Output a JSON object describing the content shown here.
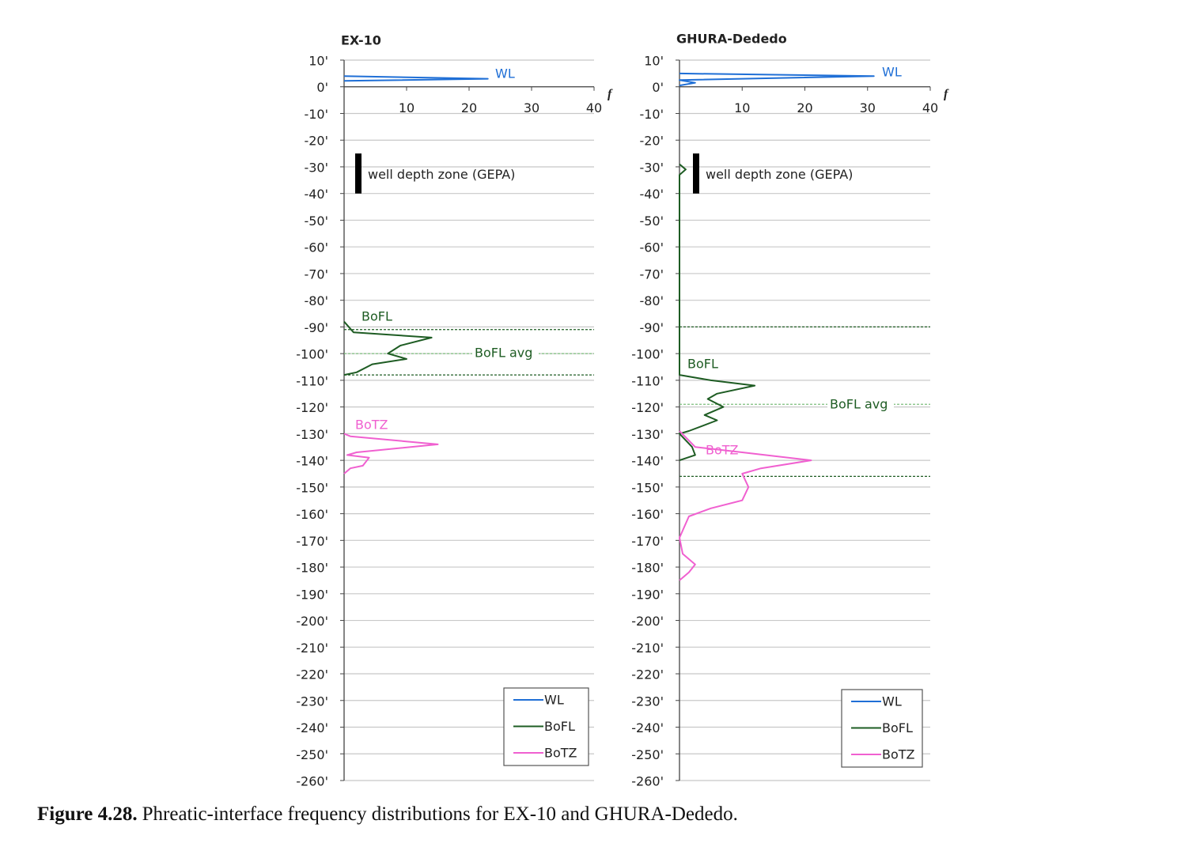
{
  "chart_data": [
    {
      "type": "line",
      "title": "EX-10",
      "x_label": "f",
      "xlim": [
        0,
        40
      ],
      "xticks": [
        10,
        20,
        30,
        40
      ],
      "ylim": [
        -260,
        10
      ],
      "yticks": [
        {
          "value": 10,
          "label": "10'"
        },
        {
          "value": 0,
          "label": "0'"
        },
        {
          "value": -10,
          "label": "-10'"
        },
        {
          "value": -20,
          "label": "-20'"
        },
        {
          "value": -30,
          "label": "-30'"
        },
        {
          "value": -40,
          "label": "-40'"
        },
        {
          "value": -50,
          "label": "-50'"
        },
        {
          "value": -60,
          "label": "-60'"
        },
        {
          "value": -70,
          "label": "-70'"
        },
        {
          "value": -80,
          "label": "-80'"
        },
        {
          "value": -90,
          "label": "-90'"
        },
        {
          "value": -100,
          "label": "-100'"
        },
        {
          "value": -110,
          "label": "-110'"
        },
        {
          "value": -120,
          "label": "-120'"
        },
        {
          "value": -130,
          "label": "-130'"
        },
        {
          "value": -140,
          "label": "-140'"
        },
        {
          "value": -150,
          "label": "-150'"
        },
        {
          "value": -160,
          "label": "-160'"
        },
        {
          "value": -170,
          "label": "-170'"
        },
        {
          "value": -180,
          "label": "-180'"
        },
        {
          "value": -190,
          "label": "-190'"
        },
        {
          "value": -200,
          "label": "-200'"
        },
        {
          "value": -210,
          "label": "-210'"
        },
        {
          "value": -220,
          "label": "-220'"
        },
        {
          "value": -230,
          "label": "-230'"
        },
        {
          "value": -240,
          "label": "-240'"
        },
        {
          "value": -250,
          "label": "-250'"
        },
        {
          "value": -260,
          "label": "-260'"
        }
      ],
      "grid": true,
      "series": [
        {
          "name": "WL",
          "color": "#1f6fd6",
          "x": [
            0,
            23,
            0
          ],
          "y": [
            4,
            3,
            2.2
          ]
        },
        {
          "name": "BoFL",
          "color": "#1e5c23",
          "x": [
            0,
            1.5,
            14,
            9,
            7,
            10,
            4.5,
            2,
            0
          ],
          "y": [
            -88,
            -92,
            -94,
            -97,
            -100,
            -102,
            -104,
            -107,
            -108
          ]
        },
        {
          "name": "BoTZ",
          "color": "#f060d0",
          "x": [
            0,
            1,
            15,
            2,
            0.5,
            4,
            3,
            1,
            0
          ],
          "y": [
            -130,
            -131,
            -134,
            -137,
            -138,
            -139,
            -142,
            -143,
            -145
          ]
        }
      ],
      "bofl_band": {
        "upper": -91,
        "avg": -100,
        "lower": -108,
        "avg_label": "BoFL avg"
      },
      "well_zone": {
        "label": "well depth zone (GEPA)",
        "top": -25,
        "bottom": -40
      }
    },
    {
      "type": "line",
      "title": "GHURA-Dededo",
      "x_label": "f",
      "xlim": [
        0,
        40
      ],
      "xticks": [
        10,
        20,
        30,
        40
      ],
      "ylim": [
        -260,
        10
      ],
      "yticks": [
        {
          "value": 10,
          "label": "10'"
        },
        {
          "value": 0,
          "label": "0'"
        },
        {
          "value": -10,
          "label": "-10'"
        },
        {
          "value": -20,
          "label": "-20'"
        },
        {
          "value": -30,
          "label": "-30'"
        },
        {
          "value": -40,
          "label": "-40'"
        },
        {
          "value": -50,
          "label": "-50'"
        },
        {
          "value": -60,
          "label": "-60'"
        },
        {
          "value": -70,
          "label": "-70'"
        },
        {
          "value": -80,
          "label": "-80'"
        },
        {
          "value": -90,
          "label": "-90'"
        },
        {
          "value": -100,
          "label": "-100'"
        },
        {
          "value": -110,
          "label": "-110'"
        },
        {
          "value": -120,
          "label": "-120'"
        },
        {
          "value": -130,
          "label": "-130'"
        },
        {
          "value": -140,
          "label": "-140'"
        },
        {
          "value": -150,
          "label": "-150'"
        },
        {
          "value": -160,
          "label": "-160'"
        },
        {
          "value": -170,
          "label": "-170'"
        },
        {
          "value": -180,
          "label": "-180'"
        },
        {
          "value": -190,
          "label": "-190'"
        },
        {
          "value": -200,
          "label": "-200'"
        },
        {
          "value": -210,
          "label": "-210'"
        },
        {
          "value": -220,
          "label": "-220'"
        },
        {
          "value": -230,
          "label": "-230'"
        },
        {
          "value": -240,
          "label": "-240'"
        },
        {
          "value": -250,
          "label": "-250'"
        },
        {
          "value": -260,
          "label": "-260'"
        }
      ],
      "grid": true,
      "series": [
        {
          "name": "WL",
          "color": "#1f6fd6",
          "x": [
            0,
            31,
            0,
            2.5,
            0
          ],
          "y": [
            5,
            4,
            2.5,
            1.5,
            0.5
          ]
        },
        {
          "name": "BoFL",
          "color": "#1e5c23",
          "x": [
            0,
            1,
            0,
            0,
            5,
            12,
            6,
            4.5,
            7,
            4,
            6,
            1.5,
            0,
            2,
            2.5,
            0
          ],
          "y": [
            -29,
            -31,
            -33,
            -108,
            -110,
            -112,
            -115,
            -117,
            -120,
            -123,
            -125,
            -129,
            -130,
            -135,
            -138,
            -140
          ]
        },
        {
          "name": "BoTZ",
          "color": "#f060d0",
          "x": [
            0,
            2.5,
            10,
            21,
            13,
            10,
            11,
            10,
            5,
            1.5,
            0,
            0.5,
            2.5,
            1.5,
            0
          ],
          "y": [
            -129,
            -135,
            -137,
            -140,
            -143,
            -145,
            -150,
            -155,
            -158,
            -161,
            -169,
            -175,
            -179,
            -182,
            -185
          ]
        }
      ],
      "bofl_band": {
        "upper": -90,
        "avg": -119,
        "lower": -146,
        "avg_label": "BoFL avg"
      },
      "well_zone": {
        "label": "well depth zone (GEPA)",
        "top": -25,
        "bottom": -40
      }
    }
  ],
  "caption": {
    "label": "Figure 4.28.",
    "text": "Phreatic-interface frequency distributions for EX-10 and GHURA-Dededo."
  }
}
